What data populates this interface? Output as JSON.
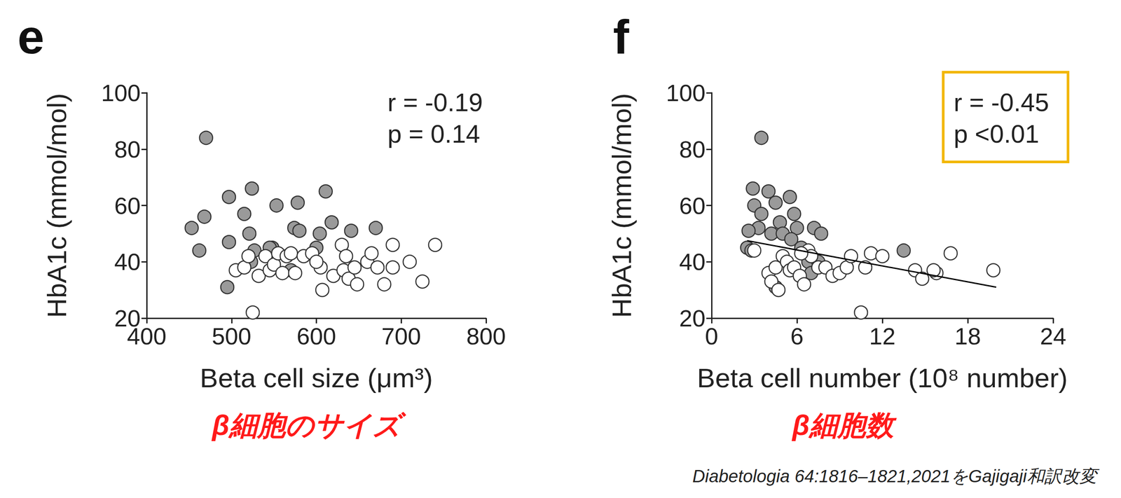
{
  "chart_data": [
    {
      "type": "scatter",
      "panel": "e",
      "xlabel": "Beta cell size (μm³)",
      "ylabel": "HbA1c (mmol/mol)",
      "x_label_ja": "β細胞のサイズ",
      "annotation": {
        "lines": [
          "r = -0.19",
          "p = 0.14"
        ]
      },
      "xlim": [
        400,
        800
      ],
      "xticks": [
        400,
        500,
        600,
        700,
        800
      ],
      "ylim": [
        20,
        100
      ],
      "yticks": [
        20,
        40,
        60,
        80,
        100
      ],
      "grid": false,
      "series": [
        {
          "type": "scatter",
          "marker": "circle",
          "color": "#9a9a9a",
          "x": [
            470,
            453,
            462,
            468,
            497,
            497,
            495,
            515,
            524,
            521,
            527,
            523,
            553,
            548,
            578,
            574,
            570,
            580,
            600,
            604,
            611,
            618,
            641,
            670,
            545
          ],
          "values": [
            84,
            52,
            44,
            56,
            63,
            47,
            31,
            57,
            66,
            50,
            44,
            40,
            60,
            45,
            61,
            52,
            37,
            51,
            45,
            50,
            65,
            54,
            51,
            52,
            45
          ]
        },
        {
          "type": "scatter",
          "marker": "circle",
          "color": "#ffffff",
          "x": [
            525,
            505,
            515,
            520,
            532,
            540,
            545,
            550,
            555,
            560,
            565,
            570,
            585,
            595,
            605,
            607,
            620,
            630,
            632,
            635,
            638,
            645,
            648,
            660,
            665,
            672,
            680,
            690,
            690,
            710,
            725,
            740,
            600,
            575
          ],
          "values": [
            22,
            37,
            38,
            42,
            35,
            42,
            37,
            39,
            43,
            36,
            42,
            43,
            42,
            43,
            38,
            30,
            35,
            46,
            37,
            42,
            34,
            38,
            32,
            40,
            43,
            38,
            32,
            46,
            38,
            40,
            33,
            46,
            40,
            36
          ]
        }
      ]
    },
    {
      "type": "scatter",
      "panel": "f",
      "xlabel": "Beta cell number (10⁸ number)",
      "ylabel": "HbA1c (mmol/mol)",
      "x_label_ja": "β細胞数",
      "annotation": {
        "lines": [
          "r = -0.45",
          "p <0.01"
        ],
        "color": "#f2b705"
      },
      "xlim": [
        0,
        24
      ],
      "xticks": [
        0,
        6,
        12,
        18,
        24
      ],
      "ylim": [
        20,
        100
      ],
      "yticks": [
        20,
        40,
        60,
        80,
        100
      ],
      "grid": false,
      "series": [
        {
          "type": "scatter",
          "marker": "circle",
          "color": "#9a9a9a",
          "x": [
            3.5,
            2.9,
            4.0,
            3.0,
            3.5,
            4.5,
            5.5,
            5.8,
            3.3,
            2.6,
            2.5,
            4.8,
            4.2,
            5.0,
            6.0,
            7.2,
            7.7,
            5.6,
            6.3,
            6.8,
            7.5,
            4.5,
            13.5,
            2.8,
            7.0
          ],
          "values": [
            84,
            66,
            65,
            60,
            57,
            61,
            63,
            57,
            52,
            51,
            45,
            54,
            50,
            50,
            52,
            52,
            50,
            48,
            45,
            40,
            40,
            31,
            44,
            44,
            36
          ]
        },
        {
          "type": "scatter",
          "marker": "circle",
          "color": "#ffffff",
          "x": [
            3.0,
            4.0,
            4.2,
            4.5,
            4.7,
            5.0,
            5.3,
            5.5,
            5.8,
            6.2,
            6.5,
            6.8,
            7.0,
            7.5,
            8.0,
            8.5,
            9.0,
            9.5,
            9.8,
            10.5,
            10.8,
            11.2,
            12.0,
            14.3,
            14.8,
            15.8,
            15.6,
            16.8,
            19.8,
            6.3
          ],
          "values": [
            44,
            36,
            33,
            38,
            30,
            42,
            40,
            37,
            38,
            35,
            32,
            44,
            42,
            38,
            38,
            35,
            36,
            38,
            42,
            22,
            38,
            43,
            42,
            37,
            34,
            36,
            37,
            43,
            37,
            43
          ]
        },
        {
          "type": "line",
          "color": "#000000",
          "line_style": "solid",
          "x": [
            2.5,
            20
          ],
          "values": [
            47.5,
            31
          ]
        }
      ]
    }
  ],
  "source": "Diabetologia 64:1816–1821,2021をGajigaji和訳改変"
}
